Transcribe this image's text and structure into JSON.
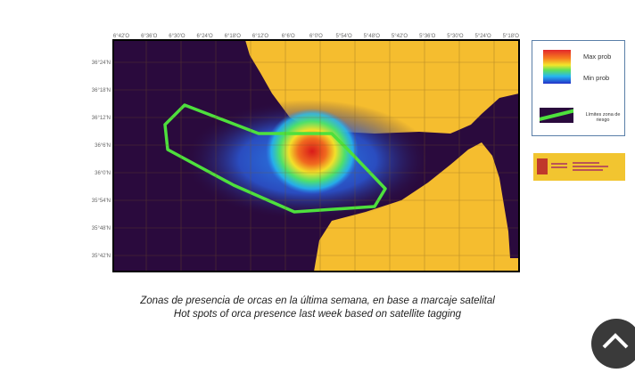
{
  "map": {
    "top_ticks": [
      "6°42'O",
      "6°36'O",
      "6°30'O",
      "6°24'O",
      "6°18'O",
      "6°12'O",
      "6°6'O",
      "6°0'O",
      "5°54'O",
      "5°48'O",
      "5°42'O",
      "5°36'O",
      "5°30'O",
      "5°24'O",
      "5°18'O"
    ],
    "left_ticks": [
      "36°24'N",
      "36°18'N",
      "36°12'N",
      "36°6'N",
      "36°0'N",
      "35°54'N",
      "35°48'N",
      "35°42'N"
    ],
    "colors": {
      "sea": "#2a0a3d",
      "land": "#f5bd2f",
      "risk_zone": "#4ee03d"
    }
  },
  "legend": {
    "max": "Max prob",
    "min": "Min prob",
    "zone": "Límites zona de riesgo"
  },
  "logo": {
    "text": "GOBIERNO DE ESPAÑA · MINISTERIO PARA LA TRANSICIÓN ECOLÓGICA Y EL RETO DEMOGRÁFICO"
  },
  "caption": {
    "es": "Zonas de presencia de orcas en la última semana, en base a marcaje satelital",
    "en": "Hot spots of orca presence last week based on satellite tagging"
  },
  "scroll_top_icon": "chevron-up-icon"
}
